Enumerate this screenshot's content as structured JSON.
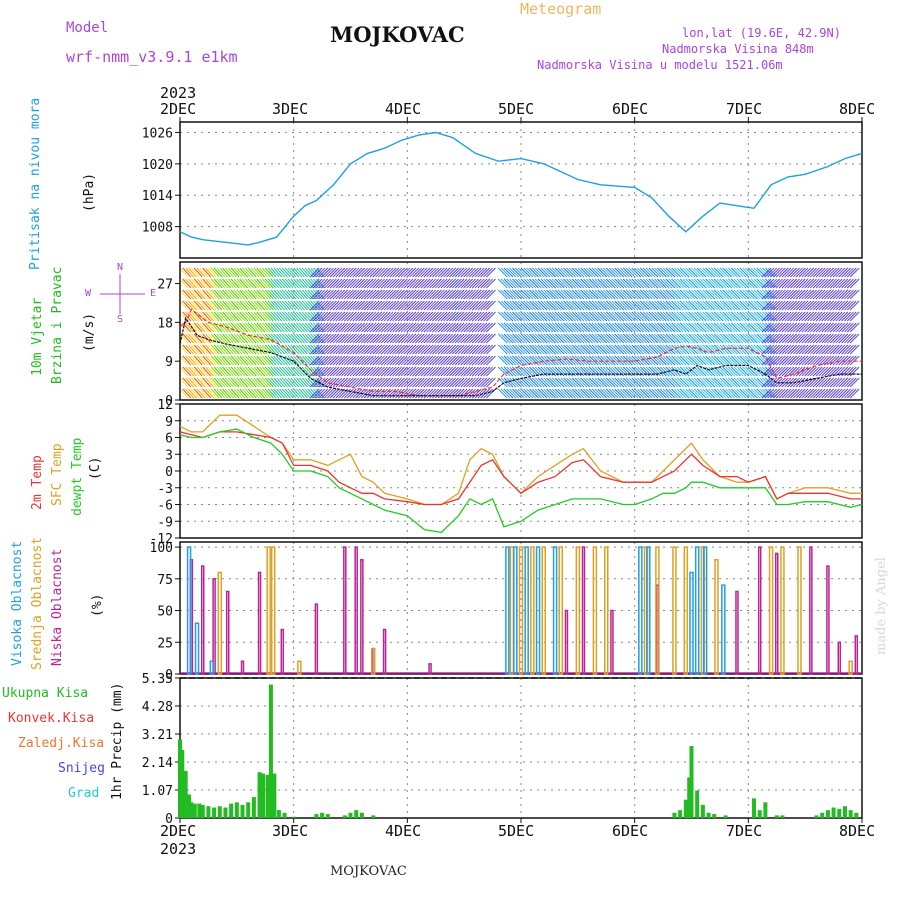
{
  "header": {
    "model_label": "Model",
    "model_name": "wrf-nmm_v3.9.1  e1km",
    "title": "MOJKOVAC",
    "meteogram": "Meteogram",
    "lonlat": "lon,lat (19.6E, 42.9N)",
    "elev": "Nadmorska Visina 848m",
    "elev_model": "Nadmorska Visina u modelu 1521.06m",
    "year_top": "2023",
    "year_bottom": "2023",
    "footer": "MOJKOVAC",
    "credit": "made by Angel"
  },
  "colors": {
    "pressure": "#1e9fe6",
    "wind_label": "#22bb22",
    "temp2m": "#ee3333",
    "sfc": "#e0a020",
    "dewpt": "#22cc22",
    "high_cloud": "#1e9fe6",
    "mid_cloud": "#e0a020",
    "low_cloud": "#bb2299",
    "compass": "#aa44dd",
    "snow": "#4444ee",
    "grad": "#22cccc",
    "zaledj": "#ee7733"
  },
  "x_axis": {
    "labels": [
      "2DEC",
      "3DEC",
      "4DEC",
      "5DEC",
      "6DEC",
      "7DEC",
      "8DEC"
    ]
  },
  "panels": {
    "pressure": {
      "label": "Pritisak na nivou mora",
      "unit": "(hPa)",
      "ticks": [
        "1026",
        "1020",
        "1014",
        "1008"
      ]
    },
    "wind": {
      "label1": "10m Vjetar",
      "label2": "Brzina i Pravac",
      "unit": "(m/s)",
      "ticks": [
        "27",
        "18",
        "9",
        "0"
      ],
      "compass": {
        "n": "N",
        "s": "S",
        "w": "W",
        "e": "E"
      }
    },
    "temp": {
      "label_2m": "2m Temp",
      "label_sfc": "SFC Temp",
      "label_dew": "dewpt Temp",
      "unit": "(C)",
      "ticks": [
        "12",
        "9",
        "6",
        "3",
        "0",
        "-3",
        "-6",
        "-9",
        "-12"
      ]
    },
    "cloud": {
      "label_high": "Visoka Oblacnost",
      "label_mid": "Srednja Oblacnost",
      "label_low": "Niska Oblacnost",
      "unit": "(%)",
      "ticks": [
        "100",
        "75",
        "50",
        "25",
        "0"
      ]
    },
    "precip": {
      "legend": [
        "Ukupna Kisa",
        "Konvek.Kisa",
        "Zaledj.Kisa",
        "Snijeg",
        "Grad"
      ],
      "unit": "1hr Precip (mm)",
      "ticks": [
        "5.35",
        "4.28",
        "3.21",
        "2.14",
        "1.07",
        "0"
      ]
    }
  },
  "chart_data": {
    "type": "line",
    "x_range_days": [
      "2DEC",
      "8DEC"
    ],
    "pressure_hpa": {
      "x": [
        2.0,
        2.1,
        2.2,
        2.4,
        2.6,
        2.7,
        2.85,
        3.0,
        3.1,
        3.2,
        3.35,
        3.5,
        3.65,
        3.8,
        3.95,
        4.1,
        4.25,
        4.4,
        4.6,
        4.8,
        5.0,
        5.2,
        5.5,
        5.7,
        6.0,
        6.15,
        6.3,
        6.45,
        6.6,
        6.75,
        6.9,
        7.05,
        7.2,
        7.35,
        7.5,
        7.7,
        7.85,
        8.0
      ],
      "y": [
        1007,
        1006,
        1005.5,
        1005,
        1004.5,
        1005,
        1006,
        1010,
        1012,
        1013,
        1016,
        1020,
        1022,
        1023,
        1024.5,
        1025.5,
        1026,
        1025,
        1022,
        1020.5,
        1021,
        1020,
        1017,
        1016,
        1015.5,
        1013.5,
        1010,
        1007,
        1010,
        1012.5,
        1012,
        1011.5,
        1016,
        1017.5,
        1018,
        1019.5,
        1021,
        1022
      ]
    },
    "wind_speed_ms": {
      "x": [
        2.0,
        2.05,
        2.1,
        2.15,
        2.25,
        2.4,
        2.6,
        2.8,
        3.0,
        3.15,
        3.3,
        3.5,
        3.7,
        3.9,
        4.1,
        4.3,
        4.45,
        4.6,
        4.75,
        4.85,
        5.0,
        5.2,
        5.4,
        5.6,
        5.8,
        6.0,
        6.2,
        6.35,
        6.45,
        6.55,
        6.65,
        6.8,
        7.0,
        7.15,
        7.25,
        7.4,
        7.6,
        7.8,
        8.0
      ],
      "max": [
        17,
        18,
        21,
        20,
        18,
        17,
        15,
        14,
        11,
        7,
        4,
        3,
        2,
        2,
        1,
        1,
        1,
        2,
        3,
        6,
        8,
        9,
        9.5,
        9,
        9,
        9,
        10,
        12,
        12.5,
        12,
        11,
        12,
        12,
        10,
        5,
        6,
        8,
        9,
        9
      ],
      "mean": [
        13,
        19,
        17,
        15,
        14,
        13,
        12,
        11,
        9,
        5,
        3,
        2,
        1,
        1,
        1,
        1,
        1,
        1,
        2,
        4,
        5,
        6,
        6,
        6,
        6,
        6,
        6,
        7,
        6,
        8,
        7,
        8,
        8,
        6,
        4,
        4,
        5,
        6,
        6
      ]
    },
    "temperature_c": {
      "x": [
        2.0,
        2.1,
        2.2,
        2.35,
        2.5,
        2.65,
        2.8,
        2.9,
        3.0,
        3.15,
        3.3,
        3.4,
        3.5,
        3.6,
        3.7,
        3.8,
        4.0,
        4.15,
        4.3,
        4.45,
        4.55,
        4.65,
        4.75,
        4.85,
        5.0,
        5.15,
        5.3,
        5.45,
        5.55,
        5.7,
        5.9,
        6.0,
        6.15,
        6.25,
        6.35,
        6.45,
        6.5,
        6.6,
        6.75,
        6.9,
        7.0,
        7.15,
        7.25,
        7.35,
        7.5,
        7.7,
        7.9,
        8.0
      ],
      "t2m": [
        7,
        6.5,
        6,
        7,
        7,
        6.5,
        6,
        5,
        1,
        1,
        0,
        -2,
        -3,
        -4,
        -4,
        -5,
        -5.5,
        -6,
        -6,
        -5,
        -2,
        1,
        2,
        -1,
        -4,
        -2,
        -1,
        1.5,
        2,
        -1,
        -2,
        -2,
        -2,
        -1,
        0,
        2,
        3,
        1,
        -1,
        -1,
        -2,
        -1,
        -5,
        -4,
        -4,
        -4,
        -5,
        -5
      ],
      "sfc": [
        8,
        7,
        7,
        10,
        10,
        8,
        6,
        5,
        2,
        2,
        1,
        2,
        3,
        -1,
        -2,
        -4,
        -5,
        -6,
        -6,
        -4,
        2,
        4,
        3,
        -1,
        -4,
        -1,
        1,
        3,
        4,
        0,
        -2,
        -2,
        -2,
        0,
        2,
        4,
        5,
        2,
        -1,
        -2,
        -2,
        -1,
        -5,
        -4,
        -3,
        -3,
        -4,
        -4
      ],
      "dewpt": [
        6.5,
        6,
        6,
        7,
        7.5,
        6,
        5,
        3,
        0,
        0,
        -1,
        -3,
        -4,
        -5,
        -6,
        -7,
        -8,
        -10.5,
        -11,
        -8,
        -5,
        -6,
        -5,
        -10,
        -9,
        -7,
        -6,
        -5,
        -5,
        -5,
        -6,
        -6,
        -5,
        -4,
        -4,
        -3,
        -2,
        -2,
        -3,
        -3,
        -3,
        -3,
        -6,
        -6,
        -5.5,
        -5.5,
        -6.5,
        -6
      ]
    },
    "cloud_pct": {
      "high": [
        [
          2.08,
          100
        ],
        [
          2.15,
          40
        ],
        [
          2.28,
          10
        ],
        [
          4.88,
          100
        ],
        [
          4.95,
          100
        ],
        [
          5.05,
          100
        ],
        [
          5.15,
          100
        ],
        [
          5.3,
          100
        ],
        [
          6.05,
          100
        ],
        [
          6.12,
          100
        ],
        [
          6.5,
          80
        ],
        [
          6.55,
          100
        ],
        [
          6.62,
          100
        ],
        [
          6.78,
          70
        ]
      ],
      "mid": [
        [
          2.35,
          80
        ],
        [
          2.78,
          100
        ],
        [
          2.82,
          100
        ],
        [
          3.05,
          10
        ],
        [
          3.7,
          20
        ],
        [
          4.92,
          100
        ],
        [
          5.0,
          100
        ],
        [
          5.1,
          100
        ],
        [
          5.2,
          100
        ],
        [
          5.35,
          100
        ],
        [
          5.5,
          100
        ],
        [
          5.65,
          100
        ],
        [
          5.75,
          100
        ],
        [
          6.1,
          100
        ],
        [
          6.2,
          100
        ],
        [
          6.35,
          100
        ],
        [
          6.45,
          100
        ],
        [
          6.6,
          100
        ],
        [
          6.72,
          90
        ],
        [
          7.2,
          100
        ],
        [
          7.3,
          100
        ],
        [
          7.45,
          100
        ],
        [
          7.9,
          10
        ]
      ],
      "low": [
        [
          2.1,
          90
        ],
        [
          2.2,
          85
        ],
        [
          2.3,
          75
        ],
        [
          2.42,
          65
        ],
        [
          2.55,
          10
        ],
        [
          2.7,
          80
        ],
        [
          2.9,
          35
        ],
        [
          3.2,
          55
        ],
        [
          3.45,
          100
        ],
        [
          3.55,
          100
        ],
        [
          3.6,
          90
        ],
        [
          3.7,
          20
        ],
        [
          3.8,
          35
        ],
        [
          4.2,
          8
        ],
        [
          5.4,
          50
        ],
        [
          5.55,
          100
        ],
        [
          5.8,
          50
        ],
        [
          6.2,
          70
        ],
        [
          6.9,
          65
        ],
        [
          7.1,
          100
        ],
        [
          7.25,
          95
        ],
        [
          7.55,
          100
        ],
        [
          7.7,
          85
        ],
        [
          7.8,
          25
        ],
        [
          7.95,
          30
        ]
      ]
    },
    "precip_mm": {
      "x": [
        2.0,
        2.02,
        2.05,
        2.08,
        2.1,
        2.13,
        2.17,
        2.2,
        2.25,
        2.3,
        2.35,
        2.4,
        2.45,
        2.5,
        2.55,
        2.6,
        2.65,
        2.7,
        2.73,
        2.77,
        2.8,
        2.83,
        2.87,
        2.92,
        3.0,
        3.2,
        3.25,
        3.3,
        3.45,
        3.5,
        3.55,
        3.6,
        3.7,
        6.35,
        6.4,
        6.45,
        6.48,
        6.5,
        6.55,
        6.6,
        6.65,
        6.7,
        6.8,
        7.05,
        7.1,
        7.15,
        7.25,
        7.3,
        7.6,
        7.65,
        7.7,
        7.75,
        7.8,
        7.85,
        7.9,
        7.95
      ],
      "total": [
        3.0,
        2.6,
        1.8,
        0.9,
        0.6,
        0.55,
        0.55,
        0.5,
        0.45,
        0.4,
        0.45,
        0.4,
        0.55,
        0.6,
        0.5,
        0.6,
        0.8,
        1.75,
        1.7,
        1.65,
        5.1,
        1.7,
        0.3,
        0.2,
        0.05,
        0.15,
        0.2,
        0.15,
        0.1,
        0.2,
        0.3,
        0.2,
        0.1,
        0.2,
        0.3,
        0.7,
        1.55,
        2.75,
        1.05,
        0.5,
        0.2,
        0.15,
        0.1,
        0.75,
        0.3,
        0.6,
        0.1,
        0.1,
        0.1,
        0.2,
        0.3,
        0.4,
        0.35,
        0.45,
        0.3,
        0.2
      ]
    }
  }
}
